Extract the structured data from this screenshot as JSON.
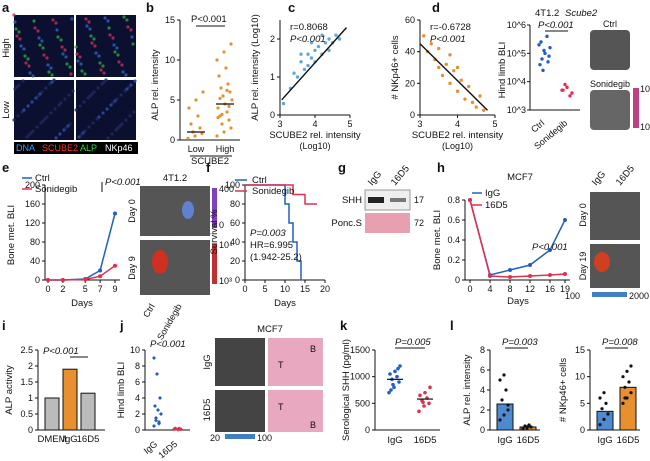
{
  "panel_labels": [
    "a",
    "b",
    "c",
    "d",
    "e",
    "f",
    "g",
    "h",
    "i",
    "j",
    "k",
    "l"
  ],
  "a": {
    "row_labels": [
      "High",
      "Low"
    ],
    "gene": "SCUBE2",
    "legend": [
      "DNA",
      "SCUBE2",
      "ALP",
      "NKp46"
    ],
    "legend_colors": [
      "#3aa0ff",
      "#ff3030",
      "#33dd33",
      "#ffffff"
    ],
    "pval": "P<0.001",
    "chart_data": {
      "type": "scatter",
      "categories": [
        "Low",
        "High"
      ],
      "xlabel": "SCUBE2",
      "ylabel": "ALP rel. intensity",
      "ylim": [
        0,
        15
      ],
      "yticks": [
        0,
        5,
        10,
        15
      ],
      "means": [
        1,
        4.5
      ],
      "values": [
        [
          0.2,
          0.5,
          0.8,
          1.0,
          1.5,
          2.0,
          3.0,
          4.0,
          5.0,
          6.0
        ],
        [
          0.5,
          1,
          1.5,
          2,
          2.5,
          3,
          3.5,
          4,
          4.5,
          5,
          5.5,
          6,
          6.5,
          7,
          8,
          9,
          10,
          11,
          12,
          3.2,
          4.2,
          5.2,
          6.2,
          2.8
        ]
      ]
    }
  },
  "b": {
    "r": "r=0.8068",
    "p": "P<0.001",
    "xlabel1": "SCUBE2 rel. intensity",
    "xlabel2": "(Log10)",
    "ylabel": "ALP rel. intensity (Log10)",
    "chart_data": {
      "type": "scatter",
      "xlim": [
        3,
        5
      ],
      "ylim": [
        0,
        2.5
      ],
      "xticks": [
        3,
        4,
        5
      ],
      "yticks": [
        0,
        1,
        2
      ],
      "points": [
        [
          3.1,
          0.3
        ],
        [
          3.3,
          0.7
        ],
        [
          3.4,
          1.1
        ],
        [
          3.5,
          1.0
        ],
        [
          3.6,
          1.4
        ],
        [
          3.7,
          1.2
        ],
        [
          3.8,
          1.6
        ],
        [
          3.9,
          1.5
        ],
        [
          4.0,
          1.7
        ],
        [
          4.1,
          1.8
        ],
        [
          4.2,
          1.6
        ],
        [
          4.3,
          1.9
        ],
        [
          4.4,
          2.0
        ],
        [
          4.5,
          1.9
        ],
        [
          4.6,
          2.1
        ],
        [
          3.8,
          1.3
        ],
        [
          4.0,
          1.4
        ],
        [
          4.2,
          2.1
        ],
        [
          4.4,
          1.7
        ],
        [
          3.6,
          1.6
        ],
        [
          4.7,
          2.0
        ],
        [
          3.9,
          1.9
        ]
      ]
    }
  },
  "c": {
    "r": "r=-0.6728",
    "p": "P<0.001",
    "xlabel1": "SCUBE2 rel. intensity",
    "xlabel2": "(Log10)",
    "ylabel": "# NKp46+ cells",
    "chart_data": {
      "type": "scatter",
      "xlim": [
        3,
        5
      ],
      "ylim": [
        0,
        60
      ],
      "xticks": [
        3,
        4,
        5
      ],
      "yticks": [
        0,
        20,
        40,
        60
      ],
      "points": [
        [
          3.1,
          50
        ],
        [
          3.2,
          40
        ],
        [
          3.3,
          45
        ],
        [
          3.4,
          35
        ],
        [
          3.5,
          30
        ],
        [
          3.5,
          42
        ],
        [
          3.6,
          25
        ],
        [
          3.7,
          32
        ],
        [
          3.8,
          20
        ],
        [
          3.9,
          28
        ],
        [
          4.0,
          15
        ],
        [
          4.1,
          22
        ],
        [
          4.2,
          10
        ],
        [
          4.3,
          18
        ],
        [
          4.4,
          8
        ],
        [
          4.5,
          5
        ],
        [
          4.6,
          12
        ],
        [
          4.7,
          3
        ],
        [
          4.0,
          30
        ],
        [
          3.8,
          38
        ]
      ]
    }
  },
  "f": {
    "title": "4T1.2",
    "gene": "Scube2",
    "p": "P<0.001",
    "ylabel": "Hind limb BLI",
    "img_labels": [
      "Ctrl",
      "Sonidegib"
    ],
    "scale": [
      "105",
      "103"
    ],
    "chart_data": {
      "type": "scatter",
      "categories": [
        "Ctrl",
        "Sonidegib"
      ],
      "ylim_log": [
        3,
        6
      ],
      "yticks": [
        "10^3",
        "10^4",
        "10^5",
        "10^6"
      ],
      "values": [
        [
          5.3,
          5.1,
          4.9,
          4.8,
          5.6,
          4.6,
          5.0,
          5.2,
          4.4,
          4.7,
          5.4
        ],
        [
          3.7,
          3.8,
          3.6,
          3.9,
          3.5,
          3.7
        ]
      ]
    }
  },
  "d": {
    "legend": [
      "Ctrl",
      "Sonidegib"
    ],
    "p": "P<0.001",
    "title": "4T1.2",
    "ylabel": "Bone met. BLI",
    "xlabel": "Days",
    "rows": [
      "Day 0",
      "Day 9"
    ],
    "img_labels": [
      "Ctrl",
      "Sonidegib"
    ],
    "scale": [
      "400",
      "0",
      "10⁴",
      "10³"
    ],
    "chart_data": {
      "type": "line",
      "x": [
        0,
        2,
        5,
        7,
        9
      ],
      "xticks": [
        0,
        2,
        5,
        7,
        9
      ],
      "ylim": [
        0,
        200
      ],
      "yticks": [
        0,
        40,
        80,
        120,
        160,
        200
      ],
      "series": [
        {
          "name": "Ctrl",
          "values": [
            0,
            0,
            2,
            20,
            140
          ]
        },
        {
          "name": "Sonidegib",
          "values": [
            0,
            0,
            1,
            8,
            30
          ]
        }
      ]
    }
  },
  "e": {
    "legend": [
      "Ctrl",
      "Sonidegib"
    ],
    "p": "P=0.003",
    "hr": "HR=6.995",
    "ci": "(1.942-25.2)",
    "ylabel": "Survival %",
    "xlabel": "Days",
    "chart_data": {
      "type": "line",
      "xlim": [
        0,
        20
      ],
      "ylim": [
        0,
        100
      ],
      "xticks": [
        0,
        5,
        10,
        15,
        20
      ],
      "yticks": [
        0,
        20,
        40,
        60,
        80,
        100
      ],
      "series": [
        {
          "name": "Ctrl",
          "points": [
            [
              0,
              100
            ],
            [
              10,
              100
            ],
            [
              10,
              80
            ],
            [
              11,
              80
            ],
            [
              11,
              60
            ],
            [
              12,
              60
            ],
            [
              12,
              40
            ],
            [
              13,
              40
            ],
            [
              13,
              20
            ],
            [
              14,
              20
            ],
            [
              14,
              0
            ]
          ]
        },
        {
          "name": "Sonidegib",
          "points": [
            [
              0,
              100
            ],
            [
              12,
              100
            ],
            [
              12,
              90
            ],
            [
              15,
              90
            ],
            [
              15,
              80
            ],
            [
              18,
              80
            ]
          ]
        }
      ]
    }
  },
  "g": {
    "lanes": [
      "IgG",
      "16D5"
    ],
    "bands": [
      "SHH",
      "Ponc.S"
    ],
    "mw": [
      "17",
      "72"
    ]
  },
  "i": {
    "title": "MCF7",
    "legend": [
      "IgG",
      "16D5"
    ],
    "p": "P<0.001",
    "ylabel": "Bone met. BLI",
    "xlabel": "Days",
    "img_labels": [
      "IgG",
      "16D5"
    ],
    "rows": [
      "Day 0",
      "Day 19"
    ],
    "scale_min": "100",
    "scale_max": "2000",
    "chart_data": {
      "type": "line",
      "x": [
        0,
        4,
        8,
        12,
        16,
        19
      ],
      "xticks": [
        0,
        4,
        8,
        12,
        16,
        19
      ],
      "ylim": [
        0,
        0.8
      ],
      "yticks": [
        0,
        0.2,
        0.4,
        0.6,
        0.8
      ],
      "series": [
        {
          "name": "IgG",
          "values": [
            0.8,
            0.05,
            0.1,
            0.15,
            0.3,
            0.6
          ]
        },
        {
          "name": "16D5",
          "values": [
            0.8,
            0.04,
            0.03,
            0.04,
            0.05,
            0.06
          ]
        }
      ]
    }
  },
  "h": {
    "p": "P<0.001",
    "ylabel": "ALP activity",
    "chart_data": {
      "type": "bar",
      "categories": [
        "DMEM",
        "IgG",
        "16D5"
      ],
      "values": [
        1.0,
        1.9,
        1.15
      ],
      "ylim": [
        0,
        2.5
      ],
      "yticks": [
        0,
        0.5,
        1.0,
        1.5,
        2.0,
        2.5
      ]
    }
  },
  "j": {
    "p": "P<0.001",
    "ylabel": "Hind limb BLI",
    "title": "MCF7",
    "img_rows": [
      "IgG",
      "16D5"
    ],
    "scale": [
      "20",
      "100"
    ],
    "tissue": [
      "T",
      "B"
    ],
    "chart_data": {
      "type": "scatter",
      "categories": [
        "IgG",
        "16D5"
      ],
      "ylim": [
        0,
        10
      ],
      "yticks": [
        0,
        2,
        4,
        6,
        8,
        10
      ],
      "values": [
        [
          0.5,
          1,
          1.5,
          2,
          2.5,
          3,
          4,
          7,
          9,
          0.8,
          1.2
        ],
        [
          0.1,
          0.2,
          0.15,
          0.1,
          0.05,
          0.2,
          0.1
        ]
      ]
    }
  },
  "k": {
    "p": "P=0.005",
    "ylabel": "Serological SHH (pg/ml)",
    "chart_data": {
      "type": "scatter",
      "categories": [
        "IgG",
        "16D5"
      ],
      "ylim": [
        0,
        1500
      ],
      "yticks": [
        0,
        500,
        1000,
        1500
      ],
      "means": [
        950,
        580
      ],
      "values": [
        [
          700,
          800,
          900,
          950,
          1000,
          1050,
          1100,
          1200,
          850,
          1150,
          750
        ],
        [
          350,
          450,
          500,
          550,
          600,
          650,
          700,
          800,
          520
        ]
      ]
    }
  },
  "l": {
    "p1": "P=0.003",
    "p2": "P=0.008",
    "ylabel1": "ALP rel. intensity",
    "ylabel2": "# NKp46+ cells",
    "chart_data": [
      {
        "type": "bar",
        "categories": [
          "IgG",
          "16D5"
        ],
        "values": [
          2.6,
          0.3
        ],
        "ylim": [
          0,
          8
        ],
        "yticks": [
          0,
          2,
          4,
          6,
          8
        ],
        "points": [
          [
            1,
            1.5,
            2,
            3,
            4,
            5,
            5.5,
            2.5
          ],
          [
            0.1,
            0.2,
            0.3,
            0.4,
            0.5,
            0.2,
            0.3
          ]
        ]
      },
      {
        "type": "bar",
        "categories": [
          "IgG",
          "16D5"
        ],
        "values": [
          3.5,
          8
        ],
        "ylim": [
          0,
          15
        ],
        "yticks": [
          0,
          5,
          10,
          15
        ],
        "points": [
          [
            1,
            2,
            3,
            4,
            5,
            6,
            7,
            3
          ],
          [
            5,
            6,
            7,
            8,
            9,
            10,
            11,
            12,
            6
          ]
        ]
      }
    ]
  }
}
